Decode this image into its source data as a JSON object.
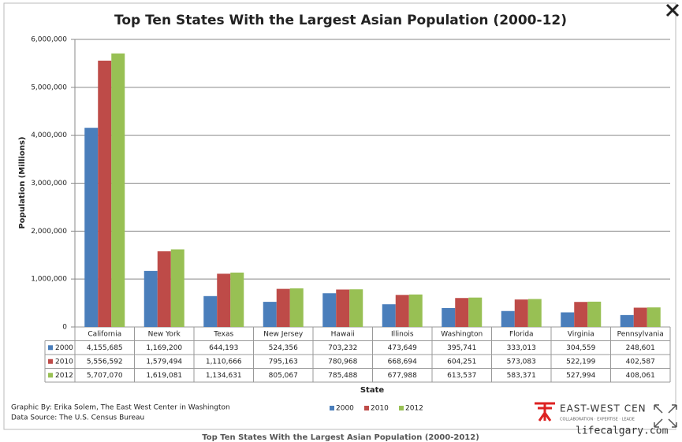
{
  "chart_data": {
    "type": "bar",
    "title": "Top Ten States With the Largest Asian Population (2000-12)",
    "y_label": "Population (Millions)",
    "x_label": "State",
    "categories": [
      "California",
      "New York",
      "Texas",
      "New Jersey",
      "Hawaii",
      "Illinois",
      "Washington",
      "Florida",
      "Virginia",
      "Pennsylvania"
    ],
    "series": [
      {
        "name": "2000",
        "color": "#4a7ebb",
        "values": [
          4155685,
          1169200,
          644193,
          524356,
          703232,
          473649,
          395741,
          333013,
          304559,
          248601
        ],
        "value_labels": [
          "4,155,685",
          "1,169,200",
          "644,193",
          "524,356",
          "703,232",
          "473,649",
          "395,741",
          "333,013",
          "304,559",
          "248,601"
        ]
      },
      {
        "name": "2010",
        "color": "#be4b48",
        "values": [
          5556592,
          1579494,
          1110666,
          795163,
          780968,
          668694,
          604251,
          573083,
          522199,
          402587
        ],
        "value_labels": [
          "5,556,592",
          "1,579,494",
          "1,110,666",
          "795,163",
          "780,968",
          "668,694",
          "604,251",
          "573,083",
          "522,199",
          "402,587"
        ]
      },
      {
        "name": "2012",
        "color": "#98c054",
        "values": [
          5707070,
          1619081,
          1134631,
          805067,
          785488,
          677988,
          613537,
          583371,
          527994,
          408061
        ],
        "value_labels": [
          "5,707,070",
          "1,619,081",
          "1,134,631",
          "805,067",
          "785,488",
          "677,988",
          "613,537",
          "583,371",
          "527,994",
          "408,061"
        ]
      }
    ],
    "ylim": [
      0,
      6000000
    ],
    "yticks": [
      0,
      {
        "value": 1000000,
        "label": "1,000,000"
      },
      {
        "value": 2000000,
        "label": "2,000,000"
      },
      {
        "value": 3000000,
        "label": "3,000,000"
      },
      {
        "value": 4000000,
        "label": "4,000,000"
      },
      {
        "value": 5000000,
        "label": "5,000,000"
      },
      {
        "value": 6000000,
        "label": "6,000,000"
      }
    ],
    "grid": true,
    "legend": "bottom",
    "credit": "Graphic By: Erika Solem, The East West Center in Washington",
    "source": "Data Source: The U.S. Census Bureau",
    "logo": "EAST-WEST CEN",
    "logo_tagline": "COLLABORATION · EXPERTISE · LEADE"
  },
  "caption": "Top Ten States With the Largest Asian Population (2000-2012)",
  "watermark": "lifecalgary.com"
}
